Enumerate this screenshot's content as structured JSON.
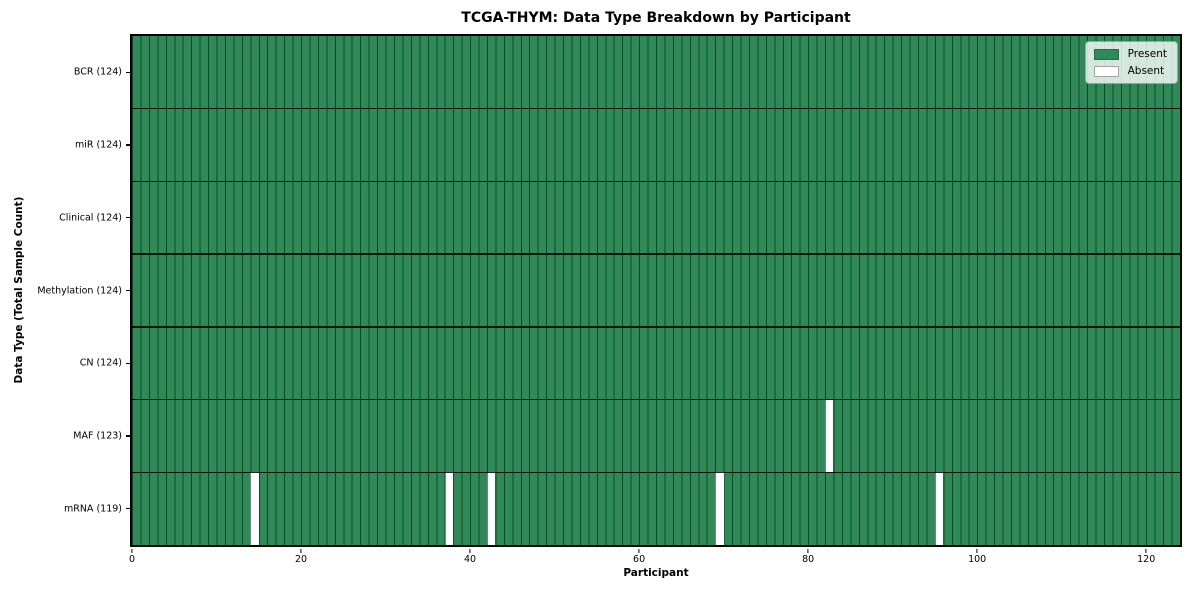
{
  "chart": {
    "title": "TCGA-THYM: Data Type Breakdown by Participant",
    "xlabel": "Participant",
    "ylabel": "Data Type (Total Sample Count)"
  },
  "chart_data": {
    "type": "heatmap",
    "title": "TCGA-THYM: Data Type Breakdown by Participant",
    "xlabel": "Participant",
    "ylabel": "Data Type (Total Sample Count)",
    "n_participants": 124,
    "xlim": [
      0,
      124
    ],
    "x_ticks": [
      0,
      20,
      40,
      60,
      80,
      100,
      120
    ],
    "grid": false,
    "legend_position": "upper right",
    "colors": {
      "present": "#2e8b57",
      "absent": "#ffffff"
    },
    "legend": {
      "entries": [
        {
          "label": "Present",
          "color": "#2e8b57"
        },
        {
          "label": "Absent",
          "color": "#ffffff"
        }
      ]
    },
    "rows": [
      {
        "label": "BCR (124)",
        "data_type": "BCR",
        "total": 124,
        "absent_participants": []
      },
      {
        "label": "miR (124)",
        "data_type": "miR",
        "total": 124,
        "absent_participants": []
      },
      {
        "label": "Clinical (124)",
        "data_type": "Clinical",
        "total": 124,
        "absent_participants": []
      },
      {
        "label": "Methylation (124)",
        "data_type": "Methylation",
        "total": 124,
        "absent_participants": []
      },
      {
        "label": "CN (124)",
        "data_type": "CN",
        "total": 124,
        "absent_participants": []
      },
      {
        "label": "MAF (123)",
        "data_type": "MAF",
        "total": 123,
        "absent_participants": [
          82
        ]
      },
      {
        "label": "mRNA (119)",
        "data_type": "mRNA",
        "total": 119,
        "absent_participants": [
          14,
          37,
          42,
          69,
          95
        ]
      }
    ]
  }
}
